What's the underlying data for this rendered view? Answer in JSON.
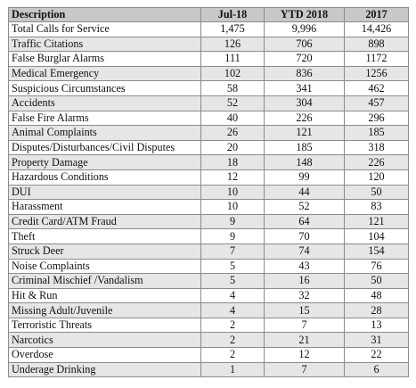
{
  "table": {
    "headers": [
      "Description",
      "Jul-18",
      "YTD 2018",
      "2017"
    ],
    "rows": [
      [
        "Total Calls for Service",
        "1,475",
        "9,996",
        "14,426"
      ],
      [
        "Traffic Citations",
        "126",
        "706",
        "898"
      ],
      [
        "False Burglar Alarms",
        "111",
        "720",
        "1172"
      ],
      [
        "Medical Emergency",
        "102",
        "836",
        "1256"
      ],
      [
        "Suspicious Circumstances",
        "58",
        "341",
        "462"
      ],
      [
        "Accidents",
        "52",
        "304",
        "457"
      ],
      [
        "False Fire Alarms",
        "40",
        "226",
        "296"
      ],
      [
        "Animal Complaints",
        "26",
        "121",
        "185"
      ],
      [
        "Disputes/Disturbances/Civil Disputes",
        "20",
        "185",
        "318"
      ],
      [
        "Property Damage",
        "18",
        "148",
        "226"
      ],
      [
        "Hazardous Conditions",
        "12",
        "99",
        "120"
      ],
      [
        "DUI",
        "10",
        "44",
        "50"
      ],
      [
        "Harassment",
        "10",
        "52",
        "83"
      ],
      [
        "Credit Card/ATM Fraud",
        "9",
        "64",
        "121"
      ],
      [
        "Theft",
        "9",
        "70",
        "104"
      ],
      [
        "Struck Deer",
        "7",
        "74",
        "154"
      ],
      [
        "Noise Complaints",
        "5",
        "43",
        "76"
      ],
      [
        "Criminal Mischief /Vandalism",
        "5",
        "16",
        "50"
      ],
      [
        "Hit & Run",
        "4",
        "32",
        "48"
      ],
      [
        "Missing Adult/Juvenile",
        "4",
        "15",
        "28"
      ],
      [
        "Terroristic Threats",
        "2",
        "7",
        "13"
      ],
      [
        "Narcotics",
        "2",
        "21",
        "31"
      ],
      [
        "Overdose",
        "2",
        "12",
        "22"
      ],
      [
        "Underage Drinking",
        "1",
        "7",
        "6"
      ]
    ]
  }
}
